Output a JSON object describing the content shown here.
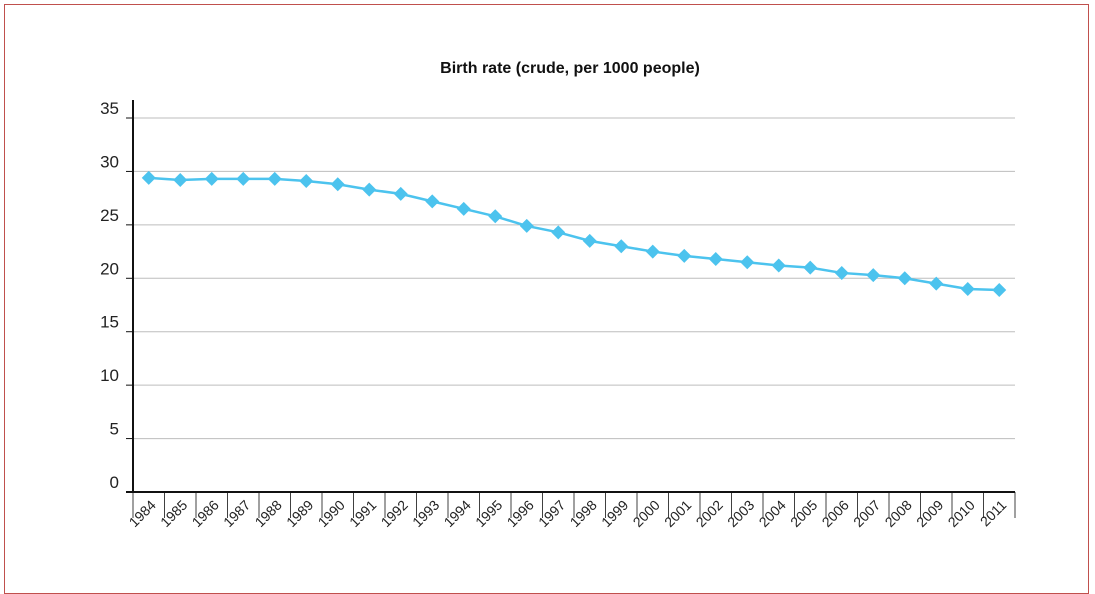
{
  "chart_data": {
    "type": "line",
    "title": "Birth rate (crude, per 1000 people)",
    "xlabel": "",
    "ylabel": "",
    "categories": [
      "1984",
      "1985",
      "1986",
      "1987",
      "1988",
      "1989",
      "1990",
      "1991",
      "1992",
      "1993",
      "1994",
      "1995",
      "1996",
      "1997",
      "1998",
      "1999",
      "2000",
      "2001",
      "2002",
      "2003",
      "2004",
      "2005",
      "2006",
      "2007",
      "2008",
      "2009",
      "2010",
      "2011"
    ],
    "values": [
      29.4,
      29.2,
      29.3,
      29.3,
      29.3,
      29.1,
      28.8,
      28.3,
      27.9,
      27.2,
      26.5,
      25.8,
      24.9,
      24.3,
      23.5,
      23.0,
      22.5,
      22.1,
      21.8,
      21.5,
      21.2,
      21.0,
      20.5,
      20.3,
      20.0,
      19.5,
      19.0,
      18.9
    ],
    "ylim": [
      0,
      35
    ],
    "yticks": [
      "0",
      "5",
      "10",
      "15",
      "20",
      "25",
      "30",
      "35"
    ],
    "grid": true,
    "colors": {
      "line": "#4cc3ee",
      "marker": "#4cc3ee",
      "grid": "#bdbdbd",
      "axis": "#111111",
      "frame_border": "#c0504d"
    },
    "marker": "diamond"
  }
}
